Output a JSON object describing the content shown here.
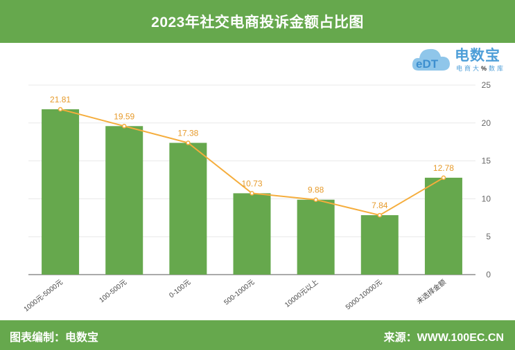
{
  "header": {
    "title": "2023年社交电商投诉金额占比图"
  },
  "logo": {
    "name": "电数宝",
    "sub_left": "电商大",
    "sub_mark": "%",
    "sub_right": "数库",
    "mark": "eDT"
  },
  "footer": {
    "left": "图表编制：电数宝",
    "right": "来源：WWW.100EC.CN"
  },
  "colors": {
    "bar": "#66a84d",
    "line": "#f5ad3c",
    "header": "#66a84d",
    "logo": "#4d9ed8"
  },
  "chart_data": {
    "type": "bar",
    "categories": [
      "1000元-5000元",
      "100-500元",
      "0-100元",
      "500-1000元",
      "10000元以上",
      "5000-10000元",
      "未选择金额"
    ],
    "values": [
      21.81,
      19.59,
      17.38,
      10.73,
      9.88,
      7.84,
      12.78
    ],
    "value_labels": [
      "21.81",
      "19.59",
      "17.38",
      "10.73",
      "9.88",
      "7.84",
      "12.78"
    ],
    "overlay_line": true,
    "y_axis_position": "right",
    "ylim": [
      0,
      25
    ],
    "yticks": [
      "0",
      "5",
      "10",
      "15",
      "20",
      "25"
    ],
    "grid": true
  }
}
